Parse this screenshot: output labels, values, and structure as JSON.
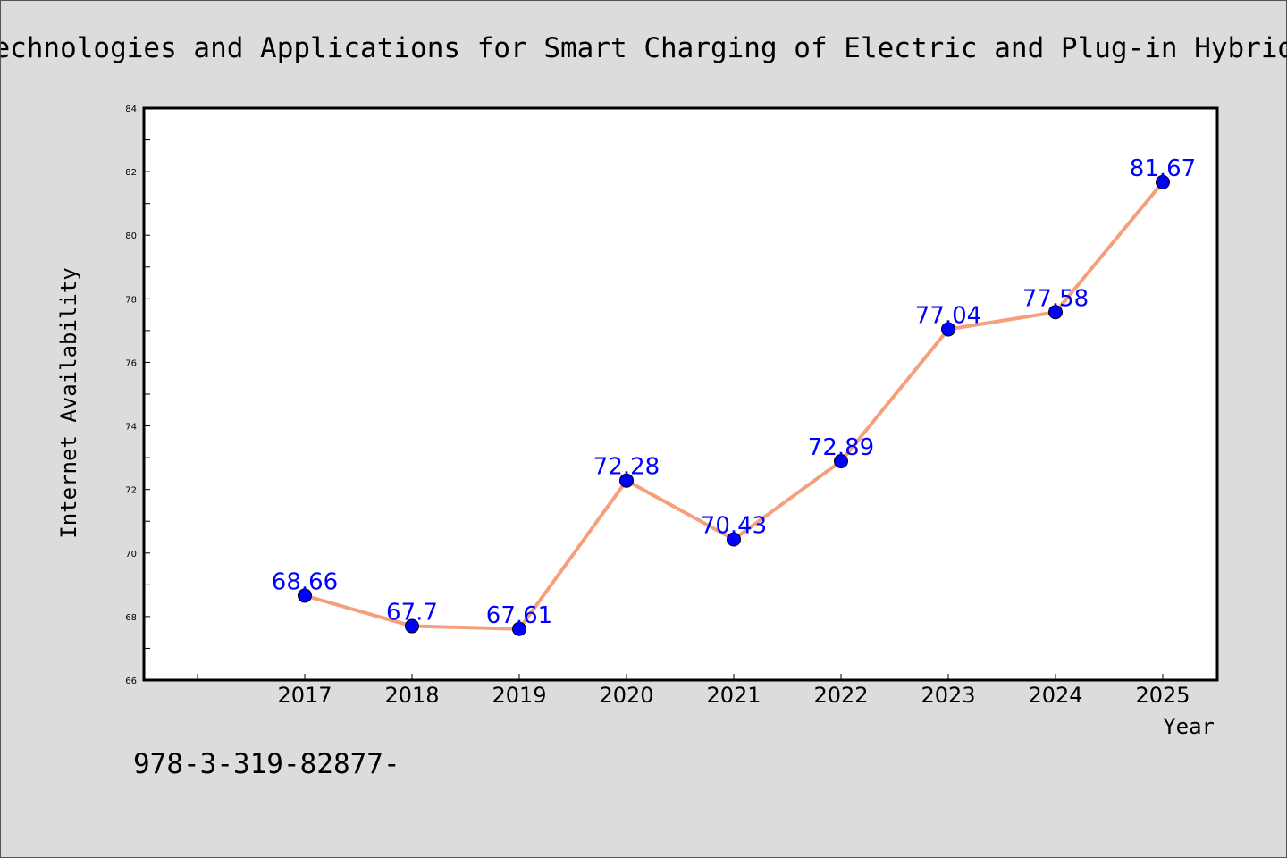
{
  "chart_data": {
    "type": "line",
    "title": "Technologies and Applications for Smart Charging of Electric and Plug-in Hybrid",
    "xlabel": "Year",
    "ylabel": "Internet Availability",
    "categories": [
      "2017",
      "2018",
      "2019",
      "2020",
      "2021",
      "2022",
      "2023",
      "2024",
      "2025"
    ],
    "series": [
      {
        "values": [
          68.66,
          67.7,
          67.61,
          72.28,
          70.43,
          72.89,
          77.04,
          77.58,
          81.67
        ],
        "labels": [
          "68.66",
          "67.7",
          "67.61",
          "72.28",
          "70.43",
          "72.89",
          "77.04",
          "77.58",
          "81.67"
        ]
      }
    ],
    "ylim": [
      66,
      84
    ],
    "yticks": [
      "66",
      "68",
      "70",
      "72",
      "74",
      "76",
      "78",
      "80",
      "82",
      "84"
    ],
    "grid": false,
    "legend": "none",
    "colors": {
      "line": "#f4a07c",
      "marker": "#0000ff",
      "data_label": "#0000ff",
      "background": "#dcdcdc",
      "plot_background": "#ffffff"
    }
  },
  "footnote": "978-3-319-82877-"
}
